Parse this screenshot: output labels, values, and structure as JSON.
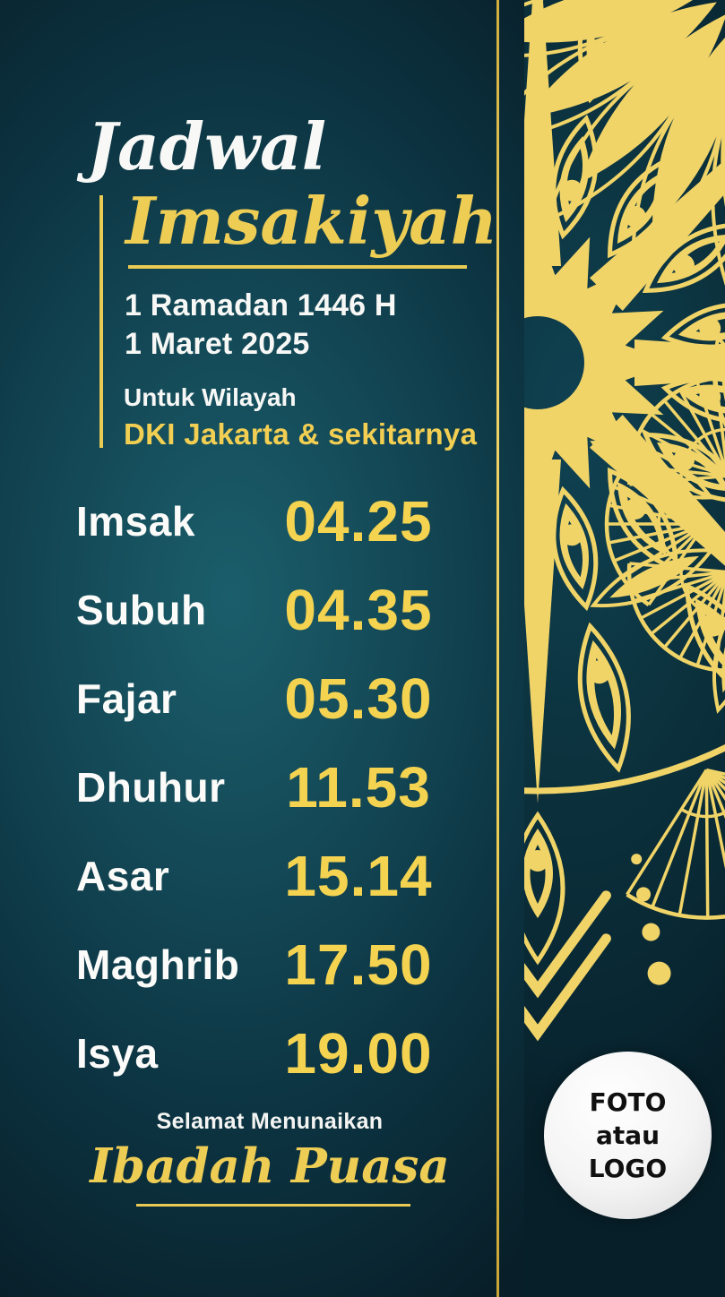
{
  "poster": {
    "title_line1": "Jadwal",
    "title_line2": "Imsakiyah",
    "hijri_date": "1 Ramadan 1446 H",
    "gregorian_date": "1 Maret 2025",
    "region_label": "Untuk Wilayah",
    "region_value": "DKI Jakarta & sekitarnya"
  },
  "schedule": {
    "rows": [
      {
        "label": "Imsak",
        "time": "04.25"
      },
      {
        "label": "Subuh",
        "time": "04.35"
      },
      {
        "label": "Fajar",
        "time": "05.30"
      },
      {
        "label": "Dhuhur",
        "time": "11.53"
      },
      {
        "label": "Asar",
        "time": "15.14"
      },
      {
        "label": "Maghrib",
        "time": "17.50"
      },
      {
        "label": "Isya",
        "time": "19.00"
      }
    ]
  },
  "footer": {
    "greeting_top": "Selamat Menunaikan",
    "greeting_main": "Ibadah Puasa"
  },
  "logo_placeholder": {
    "line1": "FOTO",
    "line2": "atau",
    "line3": "LOGO"
  },
  "colors": {
    "gold": "#eecd55",
    "gold_line": "#e9ca52",
    "gold_ornament": "#f1d468",
    "time_gold": "#f4d351",
    "white": "#f7f8f6",
    "bg_left_light": "#1b5e6b",
    "bg_left_dark": "#081f29",
    "bg_right_mid": "#0c3440",
    "bg_right_dark": "#082530",
    "placeholder_bg": "#f2f2f2",
    "placeholder_text": "#101010"
  },
  "decor": {
    "mandala": "gold-mandala-ornament",
    "divider": "vertical-gold-divider-line"
  }
}
